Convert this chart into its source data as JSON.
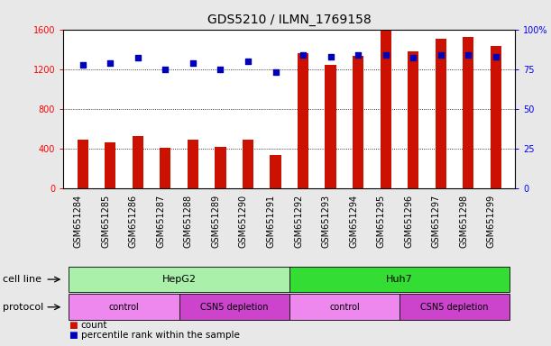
{
  "title": "GDS5210 / ILMN_1769158",
  "samples": [
    "GSM651284",
    "GSM651285",
    "GSM651286",
    "GSM651287",
    "GSM651288",
    "GSM651289",
    "GSM651290",
    "GSM651291",
    "GSM651292",
    "GSM651293",
    "GSM651294",
    "GSM651295",
    "GSM651296",
    "GSM651297",
    "GSM651298",
    "GSM651299"
  ],
  "counts": [
    490,
    460,
    530,
    410,
    490,
    420,
    490,
    340,
    1360,
    1240,
    1330,
    1600,
    1380,
    1510,
    1520,
    1430
  ],
  "percentile_ranks": [
    78,
    79,
    82,
    75,
    79,
    75,
    80,
    73,
    84,
    83,
    84,
    84,
    82,
    84,
    84,
    83
  ],
  "cell_line_groups": [
    {
      "label": "HepG2",
      "start": 0,
      "end": 8,
      "color": "#aaf0aa"
    },
    {
      "label": "Huh7",
      "start": 8,
      "end": 16,
      "color": "#33dd33"
    }
  ],
  "protocol_groups": [
    {
      "label": "control",
      "start": 0,
      "end": 4,
      "color": "#ee88ee"
    },
    {
      "label": "CSN5 depletion",
      "start": 4,
      "end": 8,
      "color": "#cc44cc"
    },
    {
      "label": "control",
      "start": 8,
      "end": 12,
      "color": "#ee88ee"
    },
    {
      "label": "CSN5 depletion",
      "start": 12,
      "end": 16,
      "color": "#cc44cc"
    }
  ],
  "bar_color": "#cc1100",
  "dot_color": "#0000bb",
  "left_ylim": [
    0,
    1600
  ],
  "right_ylim": [
    0,
    100
  ],
  "left_yticks": [
    0,
    400,
    800,
    1200,
    1600
  ],
  "right_yticks": [
    0,
    25,
    50,
    75,
    100
  ],
  "right_yticklabels": [
    "0",
    "25",
    "50",
    "75",
    "100%"
  ],
  "background_color": "#e8e8e8",
  "plot_bg_color": "#ffffff",
  "xtick_bg_color": "#d0d0d0",
  "cell_line_row_label": "cell line",
  "protocol_row_label": "protocol",
  "legend_count_label": "count",
  "legend_percentile_label": "percentile rank within the sample",
  "title_fontsize": 10,
  "label_fontsize": 8,
  "tick_fontsize": 7,
  "annotation_fontsize": 8,
  "bar_width": 0.4
}
